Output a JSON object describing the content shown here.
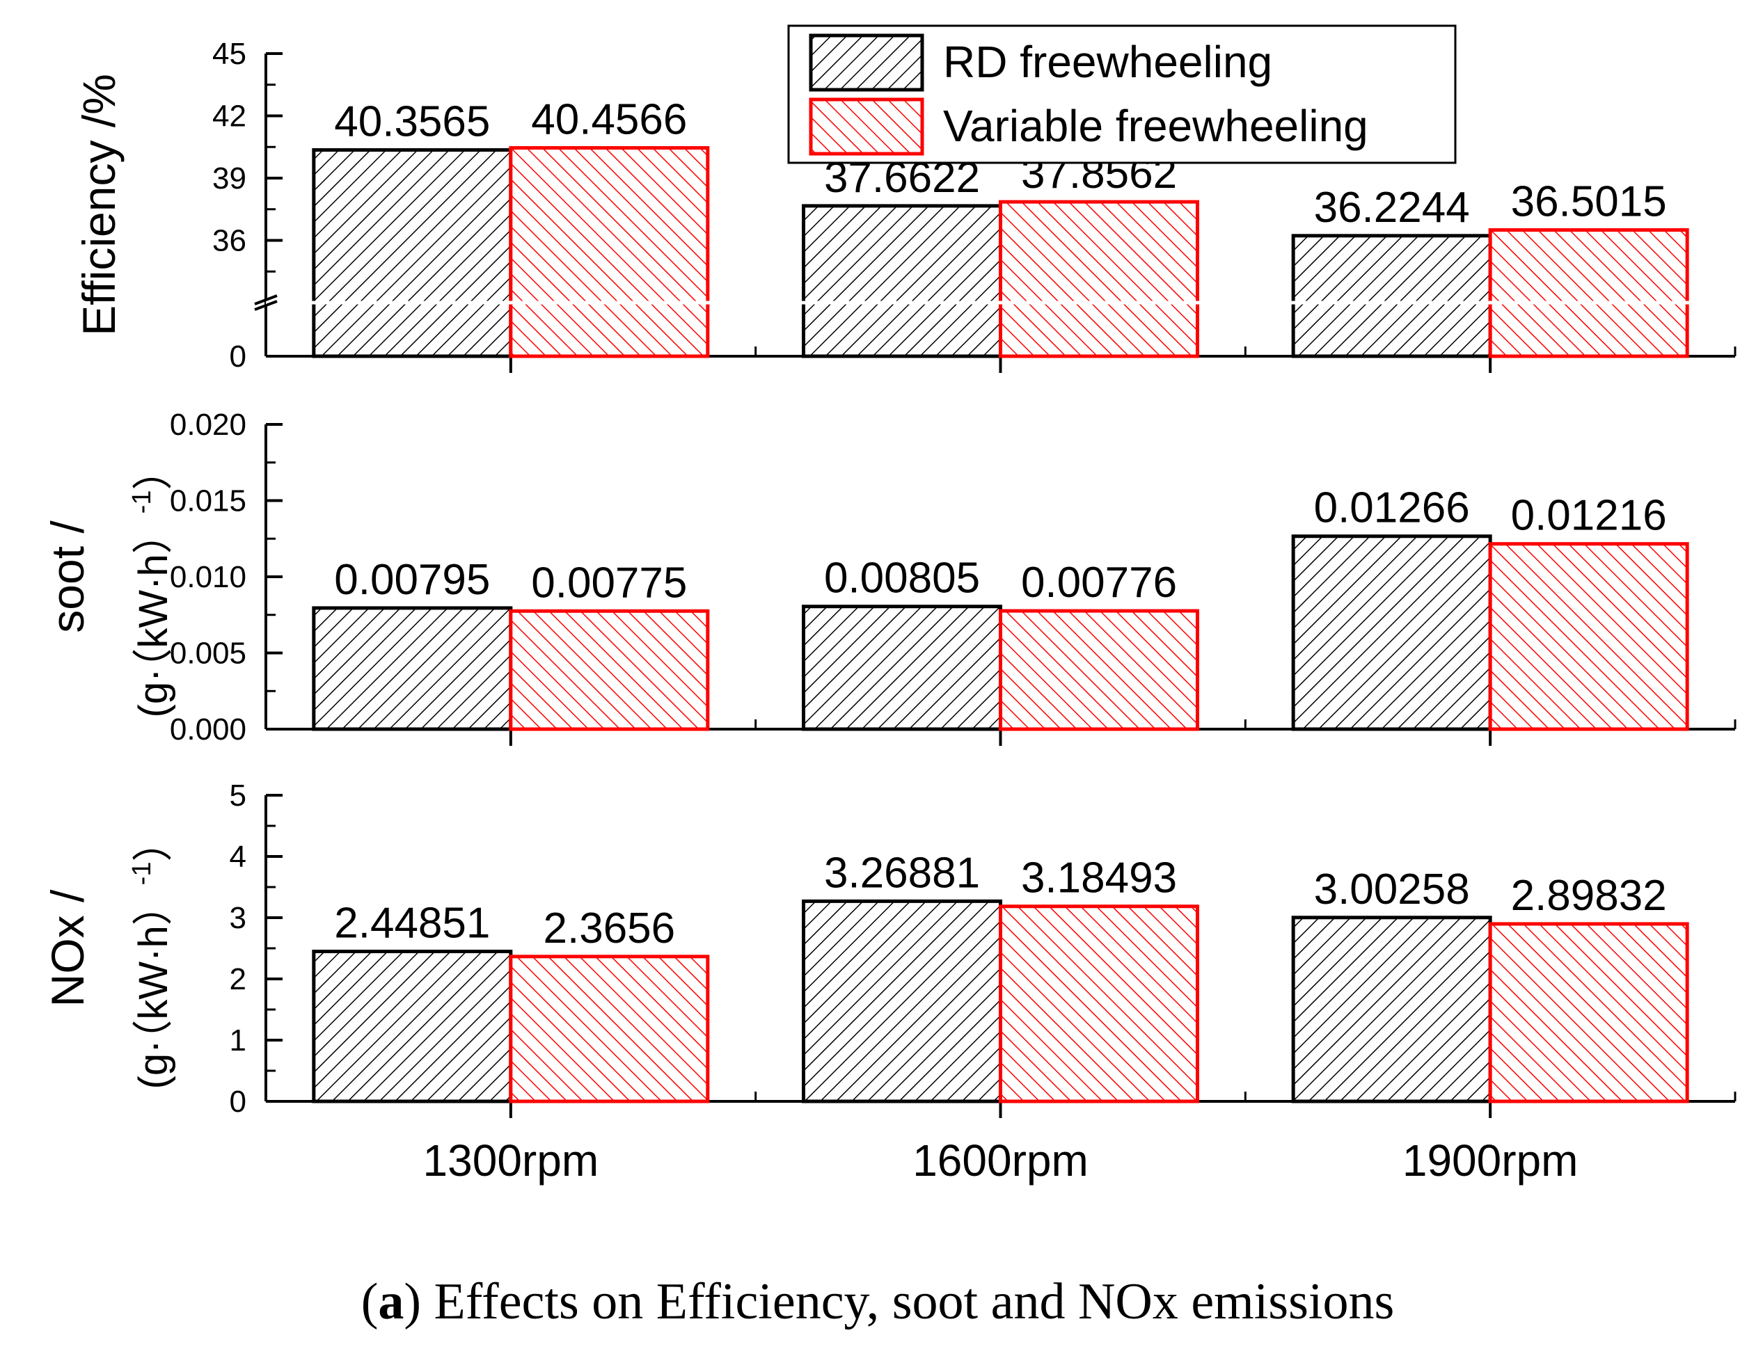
{
  "colors": {
    "series_1": "#000000",
    "series_2": "#ff0000",
    "axis": "#000000",
    "background": "#ffffff"
  },
  "caption": {
    "label": "a",
    "text": " Effects on Efficiency, soot and NOx emissions"
  },
  "chart_data": [
    {
      "type": "bar",
      "title": "",
      "categories": [
        "1300rpm",
        "1600rpm",
        "1900rpm"
      ],
      "ylabel": "Efficiency /%",
      "ylabel_lines": [
        "Efficiency /%"
      ],
      "ylim": [
        0,
        45
      ],
      "axis_break": {
        "from": 0,
        "to": 33
      },
      "yticks": [
        {
          "v": 0,
          "label": "0"
        },
        {
          "v": 36,
          "label": "36"
        },
        {
          "v": 39,
          "label": "39"
        },
        {
          "v": 42,
          "label": "42"
        },
        {
          "v": 45,
          "label": "45"
        }
      ],
      "series": [
        {
          "name": "RD freewheeling",
          "values": [
            40.3565,
            37.6622,
            36.2244
          ],
          "labels": [
            "40.3565",
            "37.6622",
            "36.2244"
          ]
        },
        {
          "name": "Variable freewheeling",
          "values": [
            40.4566,
            37.8562,
            36.5015
          ],
          "labels": [
            "40.4566",
            "37.8562",
            "36.5015"
          ]
        }
      ],
      "legend": {
        "position": "top-right",
        "entries": [
          "RD freewheeling",
          "Variable freewheeling"
        ]
      }
    },
    {
      "type": "bar",
      "title": "",
      "categories": [
        "1300rpm",
        "1600rpm",
        "1900rpm"
      ],
      "ylabel": "soot / (g·(kW·h)-1)",
      "ylabel_lines": [
        "soot /",
        "(g·（kW·h）",
        "-1",
        "）"
      ],
      "ylim": [
        0,
        0.02
      ],
      "yticks": [
        {
          "v": 0,
          "label": "0.000"
        },
        {
          "v": 0.005,
          "label": "0.005"
        },
        {
          "v": 0.01,
          "label": "0.010"
        },
        {
          "v": 0.015,
          "label": "0.015"
        },
        {
          "v": 0.02,
          "label": "0.020"
        }
      ],
      "series": [
        {
          "name": "RD freewheeling",
          "values": [
            0.00795,
            0.00805,
            0.01266
          ],
          "labels": [
            "0.00795",
            "0.00805",
            "0.01266"
          ]
        },
        {
          "name": "Variable freewheeling",
          "values": [
            0.00775,
            0.00776,
            0.01216
          ],
          "labels": [
            "0.00775",
            "0.00776",
            "0.01216"
          ]
        }
      ]
    },
    {
      "type": "bar",
      "title": "",
      "categories": [
        "1300rpm",
        "1600rpm",
        "1900rpm"
      ],
      "xlabel": "",
      "ylabel": "NOx / (g·(kW·h)-1)",
      "ylabel_lines": [
        "NOx /",
        "(g·（kW·h）",
        "-1",
        "）"
      ],
      "ylim": [
        0,
        5
      ],
      "yticks": [
        {
          "v": 0,
          "label": "0"
        },
        {
          "v": 1,
          "label": "1"
        },
        {
          "v": 2,
          "label": "2"
        },
        {
          "v": 3,
          "label": "3"
        },
        {
          "v": 4,
          "label": "4"
        },
        {
          "v": 5,
          "label": "5"
        }
      ],
      "series": [
        {
          "name": "RD freewheeling",
          "values": [
            2.44851,
            3.26881,
            3.00258
          ],
          "labels": [
            "2.44851",
            "3.26881",
            "3.00258"
          ]
        },
        {
          "name": "Variable freewheeling",
          "values": [
            2.3656,
            3.18493,
            2.89832
          ],
          "labels": [
            "2.3656",
            "3.18493",
            "2.89832"
          ]
        }
      ]
    }
  ]
}
